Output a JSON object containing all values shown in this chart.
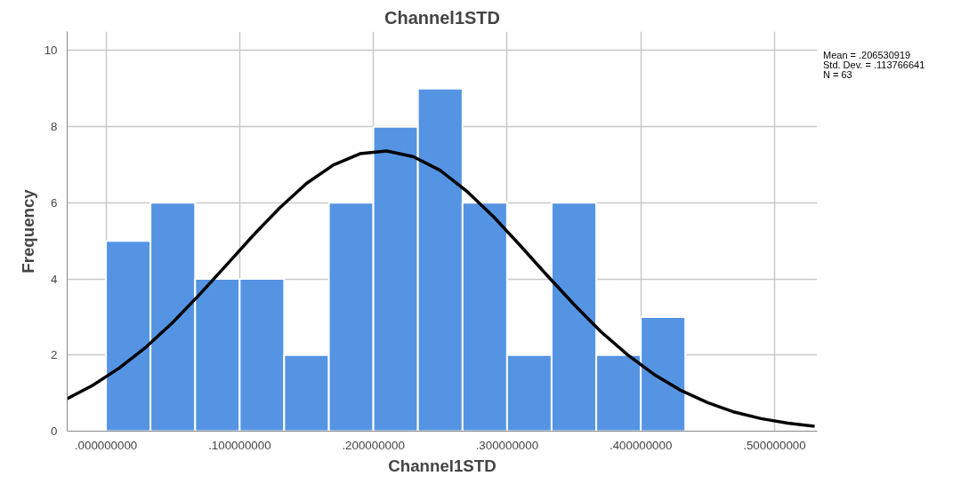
{
  "chart_data": {
    "type": "histogram",
    "title": "Channel1STD",
    "xlabel": "Channel1STD",
    "ylabel": "Frequency",
    "bins": [
      0,
      0.0333,
      0.0667,
      0.1,
      0.1333,
      0.1667,
      0.2,
      0.2333,
      0.2667,
      0.3,
      0.3333,
      0.3667,
      0.4,
      0.4333
    ],
    "values": [
      5,
      6,
      4,
      4,
      2,
      6,
      8,
      9,
      6,
      2,
      6,
      2,
      3
    ],
    "color": "#5594e3",
    "series": [
      {
        "type": "line",
        "color": "#000000",
        "x": [
          -0.029,
          -0.01,
          0.01,
          0.03,
          0.05,
          0.07,
          0.09,
          0.11,
          0.13,
          0.15,
          0.17,
          0.19,
          0.21,
          0.23,
          0.25,
          0.27,
          0.29,
          0.31,
          0.33,
          0.35,
          0.37,
          0.39,
          0.41,
          0.43,
          0.45,
          0.47,
          0.49,
          0.51,
          0.53
        ],
        "values": [
          0.85,
          1.2,
          1.66,
          2.21,
          2.86,
          3.59,
          4.36,
          5.14,
          5.87,
          6.51,
          6.99,
          7.29,
          7.36,
          7.21,
          6.85,
          6.3,
          5.63,
          4.87,
          4.09,
          3.33,
          2.62,
          2.01,
          1.49,
          1.07,
          0.75,
          0.5,
          0.33,
          0.21,
          0.13
        ]
      }
    ],
    "xlim": [
      -0.029,
      0.532
    ],
    "ylim": [
      0,
      10.5
    ],
    "xticks": [
      {
        "value": 0,
        "label": ".000000000"
      },
      {
        "value": 0.1,
        "label": ".100000000"
      },
      {
        "value": 0.2,
        "label": ".200000000"
      },
      {
        "value": 0.3,
        "label": ".300000000"
      },
      {
        "value": 0.4,
        "label": ".400000000"
      },
      {
        "value": 0.5,
        "label": ".500000000"
      }
    ],
    "yticks": [
      0,
      2,
      4,
      6,
      8,
      10
    ],
    "grid": true,
    "annotations": [
      "Mean = .206530919",
      "Std. Dev. = .113766641",
      "N = 63"
    ]
  }
}
